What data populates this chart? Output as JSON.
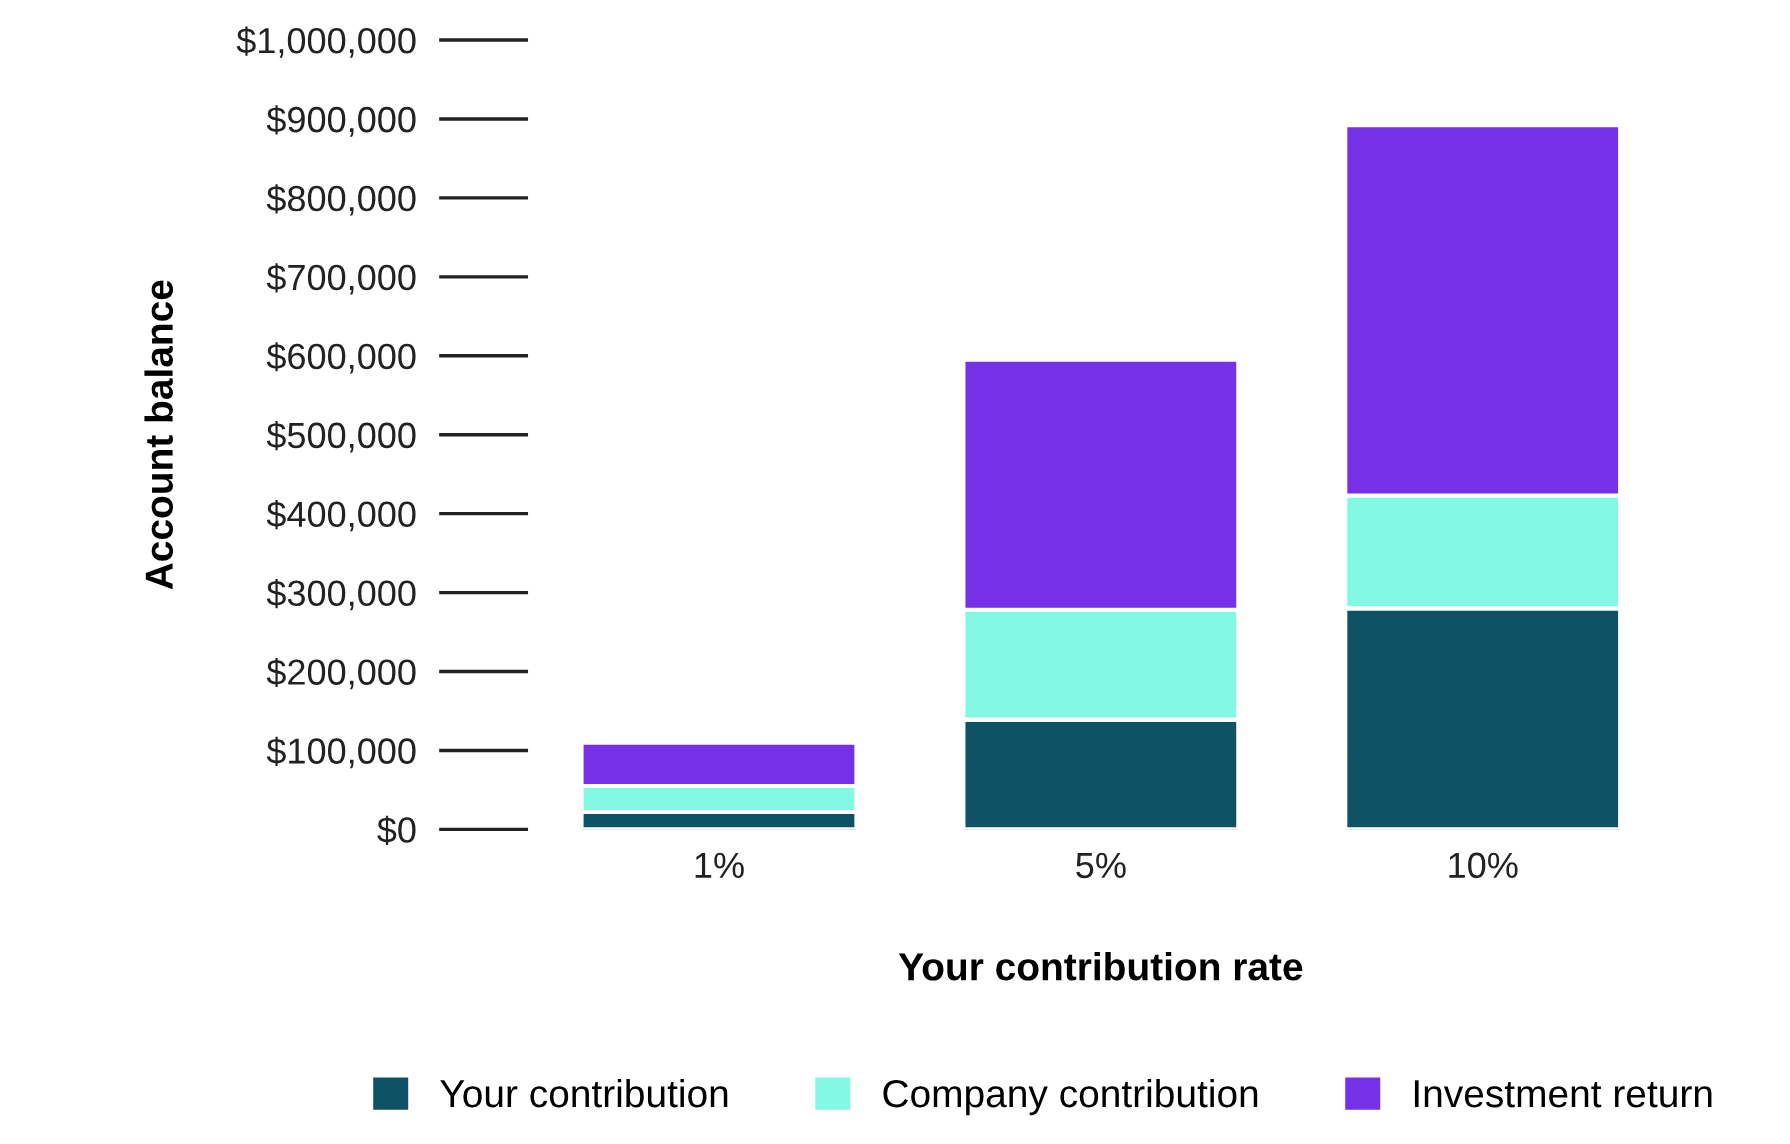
{
  "chart_data": {
    "type": "bar",
    "stacked": true,
    "xlabel": "Your contribution rate",
    "ylabel": "Account balance",
    "categories": [
      "1%",
      "5%",
      "10%"
    ],
    "series": [
      {
        "name": "Your contribution",
        "color": "#0f5266",
        "values": [
          22000,
          139000,
          280000
        ]
      },
      {
        "name": "Company contribution",
        "color": "#83f8e3",
        "values": [
          33000,
          139000,
          143000
        ]
      },
      {
        "name": "Investment return",
        "color": "#7631e8",
        "values": [
          55000,
          317000,
          469000
        ]
      }
    ],
    "ylim": [
      0,
      1000000
    ],
    "yticks": [
      {
        "value": 0,
        "label": "$0"
      },
      {
        "value": 100000,
        "label": "$100,000"
      },
      {
        "value": 200000,
        "label": "$200,000"
      },
      {
        "value": 300000,
        "label": "$300,000"
      },
      {
        "value": 400000,
        "label": "$400,000"
      },
      {
        "value": 500000,
        "label": "$500,000"
      },
      {
        "value": 600000,
        "label": "$600,000"
      },
      {
        "value": 700000,
        "label": "$700,000"
      },
      {
        "value": 800000,
        "label": "$800,000"
      },
      {
        "value": 900000,
        "label": "$900,000"
      },
      {
        "value": 1000000,
        "label": "$1,000,000"
      }
    ],
    "grid": false,
    "legend": "bottom"
  }
}
